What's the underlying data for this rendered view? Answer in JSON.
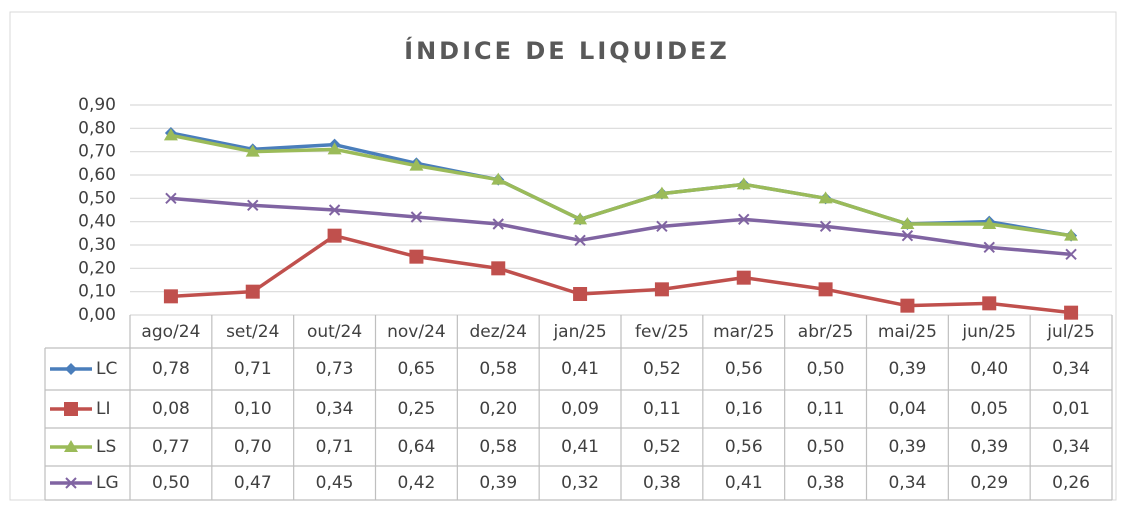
{
  "chart_data": {
    "type": "line",
    "title": "ÍNDICE DE LIQUIDEZ",
    "categories": [
      "ago/24",
      "set/24",
      "out/24",
      "nov/24",
      "dez/24",
      "jan/25",
      "fev/25",
      "mar/25",
      "abr/25",
      "mai/25",
      "jun/25",
      "jul/25"
    ],
    "ylim": [
      0,
      0.9
    ],
    "yticks": [
      {
        "value": 0,
        "label": "0,00"
      },
      {
        "value": 0.1,
        "label": "0,10"
      },
      {
        "value": 0.2,
        "label": "0,20"
      },
      {
        "value": 0.3,
        "label": "0,30"
      },
      {
        "value": 0.4,
        "label": "0,40"
      },
      {
        "value": 0.5,
        "label": "0,50"
      },
      {
        "value": 0.6,
        "label": "0,60"
      },
      {
        "value": 0.7,
        "label": "0,70"
      },
      {
        "value": 0.8,
        "label": "0,80"
      },
      {
        "value": 0.9,
        "label": "0,90"
      }
    ],
    "grid": true,
    "series": [
      {
        "name": "LC",
        "color": "#4a7ebb",
        "marker": "diamond",
        "values": [
          0.78,
          0.71,
          0.73,
          0.65,
          0.58,
          0.41,
          0.52,
          0.56,
          0.5,
          0.39,
          0.4,
          0.34
        ],
        "value_labels": [
          "0,78",
          "0,71",
          "0,73",
          "0,65",
          "0,58",
          "0,41",
          "0,52",
          "0,56",
          "0,50",
          "0,39",
          "0,40",
          "0,34"
        ]
      },
      {
        "name": "LI",
        "color": "#c0504d",
        "marker": "square",
        "values": [
          0.08,
          0.1,
          0.34,
          0.25,
          0.2,
          0.09,
          0.11,
          0.16,
          0.11,
          0.04,
          0.05,
          0.01
        ],
        "value_labels": [
          "0,08",
          "0,10",
          "0,34",
          "0,25",
          "0,20",
          "0,09",
          "0,11",
          "0,16",
          "0,11",
          "0,04",
          "0,05",
          "0,01"
        ]
      },
      {
        "name": "LS",
        "color": "#9bbb59",
        "marker": "triangle",
        "values": [
          0.77,
          0.7,
          0.71,
          0.64,
          0.58,
          0.41,
          0.52,
          0.56,
          0.5,
          0.39,
          0.39,
          0.34
        ],
        "value_labels": [
          "0,77",
          "0,70",
          "0,71",
          "0,64",
          "0,58",
          "0,41",
          "0,52",
          "0,56",
          "0,50",
          "0,39",
          "0,39",
          "0,34"
        ]
      },
      {
        "name": "LG",
        "color": "#8064a2",
        "marker": "x",
        "values": [
          0.5,
          0.47,
          0.45,
          0.42,
          0.39,
          0.32,
          0.38,
          0.41,
          0.38,
          0.34,
          0.29,
          0.26
        ],
        "value_labels": [
          "0,50",
          "0,47",
          "0,45",
          "0,42",
          "0,39",
          "0,32",
          "0,38",
          "0,41",
          "0,38",
          "0,34",
          "0,29",
          "0,26"
        ]
      }
    ]
  }
}
